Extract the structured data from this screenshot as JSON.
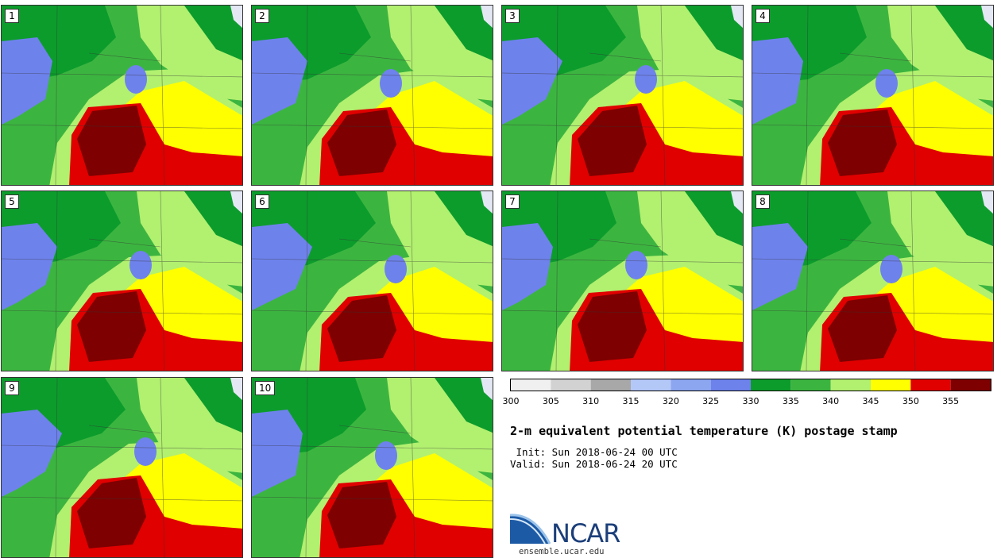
{
  "panels": [
    {
      "label": "1"
    },
    {
      "label": "2"
    },
    {
      "label": "3"
    },
    {
      "label": "4"
    },
    {
      "label": "5"
    },
    {
      "label": "6"
    },
    {
      "label": "7"
    },
    {
      "label": "8"
    },
    {
      "label": "9"
    },
    {
      "label": "10"
    }
  ],
  "colorbar": {
    "ticks": [
      "300",
      "305",
      "310",
      "315",
      "320",
      "325",
      "330",
      "335",
      "340",
      "345",
      "350",
      "355"
    ],
    "colors": [
      "#f0f0f0",
      "#d2d2d2",
      "#a8a8a8",
      "#b4c8f8",
      "#8ca6f0",
      "#6e82ec",
      "#0c9c2c",
      "#3cb540",
      "#b2f070",
      "#ffff00",
      "#e00000",
      "#7e0000"
    ]
  },
  "title": "2-m equivalent potential temperature (K) postage stamp",
  "init": " Init: Sun 2018-06-24 00 UTC",
  "valid": "Valid: Sun 2018-06-24 20 UTC",
  "logo": {
    "name": "NCAR",
    "url": "ensemble.ucar.edu"
  }
}
